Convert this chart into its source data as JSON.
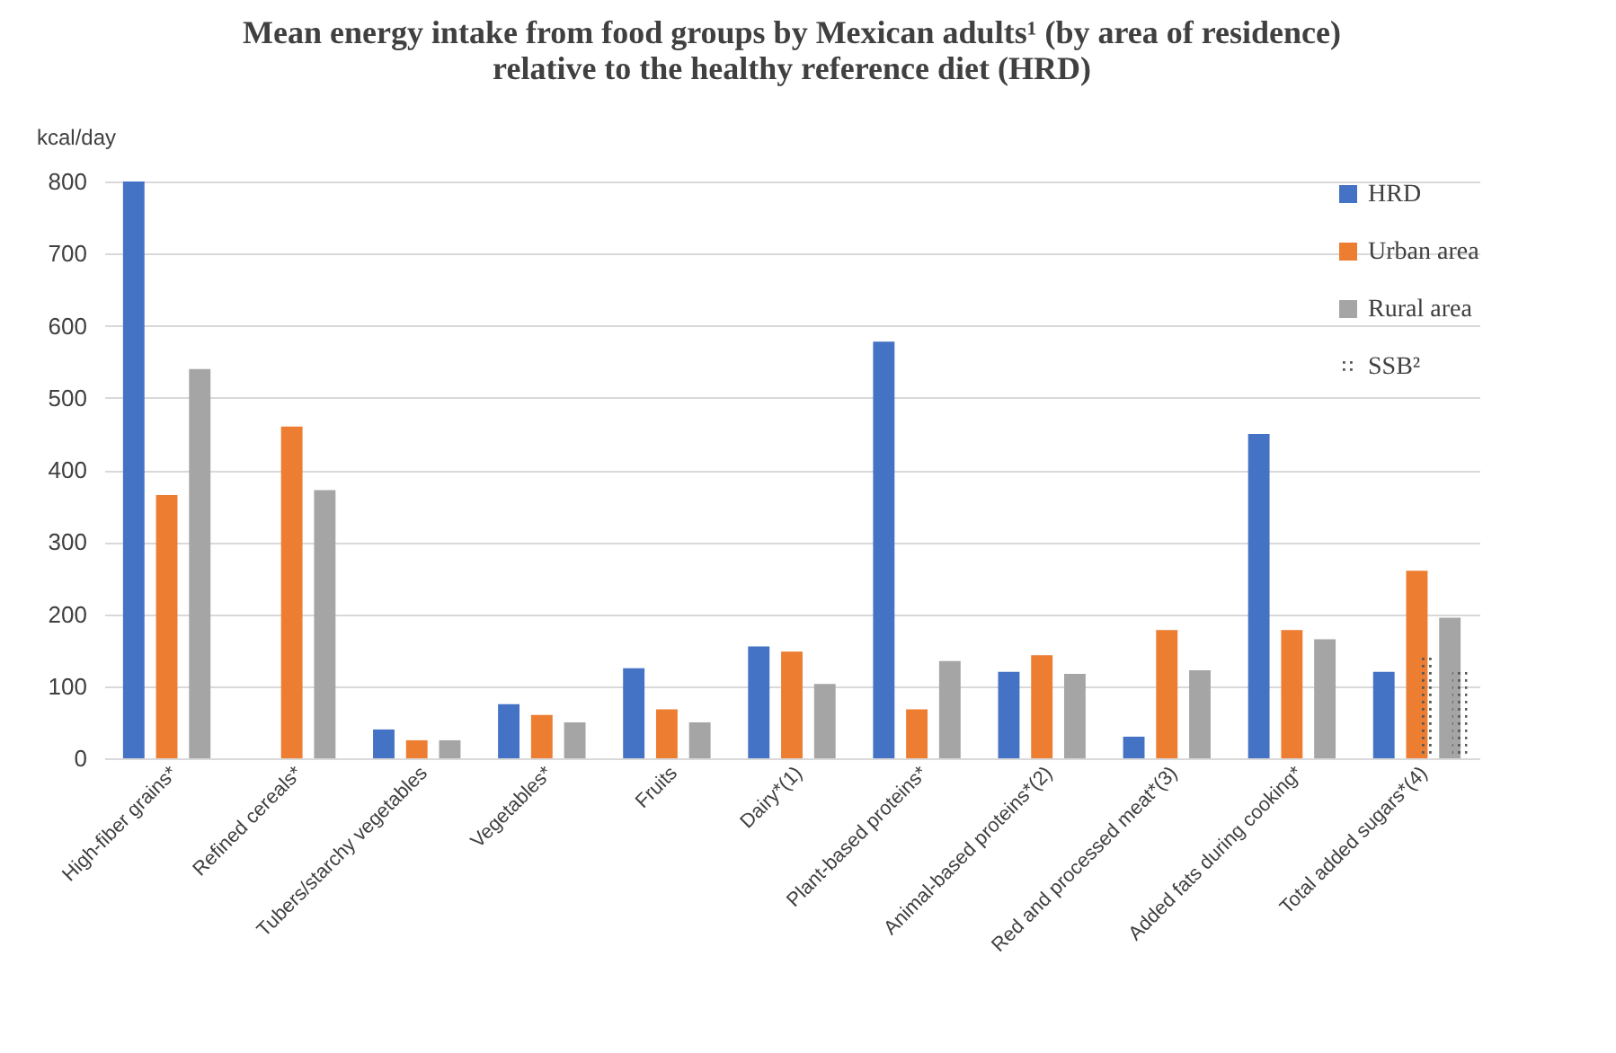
{
  "chart_data": {
    "type": "bar",
    "title": [
      "Mean  energy intake from food groups  by Mexican adults¹ (by area of residence)",
      "relative to the healthy reference diet (HRD)"
    ],
    "ylabel": "kcal/day",
    "categories": [
      "High-fiber grains*",
      "Refined cereals*",
      "Tubers/starchy vegetables",
      "Vegetables*",
      "Fruits",
      "Dairy*(1)",
      "Plant-based proteins*",
      "Animal-based proteins*(2)",
      "Red and processed meat*(3)",
      "Added fats during cooking*",
      "Total added sugars*(4)"
    ],
    "series": [
      {
        "name": "HRD",
        "color": "#4472c4",
        "values": [
          800,
          0,
          40,
          75,
          125,
          155,
          578,
          120,
          30,
          450,
          120
        ]
      },
      {
        "name": "Urban area",
        "color": "#ed7d31",
        "values": [
          365,
          460,
          25,
          60,
          68,
          148,
          68,
          143,
          178,
          178,
          260
        ]
      },
      {
        "name": "Rural area",
        "color": "#a5a5a5",
        "values": [
          540,
          372,
          25,
          50,
          50,
          103,
          135,
          117,
          122,
          165,
          195
        ]
      },
      {
        "name": "SSB²",
        "color": "#595959",
        "values": [
          null,
          null,
          null,
          null,
          null,
          null,
          null,
          null,
          null,
          null,
          140
        ]
      },
      {
        "color": "#595959",
        "values": [
          null,
          null,
          null,
          null,
          null,
          null,
          null,
          null,
          null,
          null,
          120
        ]
      }
    ],
    "ylim": [
      0,
      800
    ],
    "yticks": [
      0,
      100,
      200,
      300,
      400,
      500,
      600,
      700,
      800
    ],
    "grid": "y",
    "legend": "top right"
  }
}
